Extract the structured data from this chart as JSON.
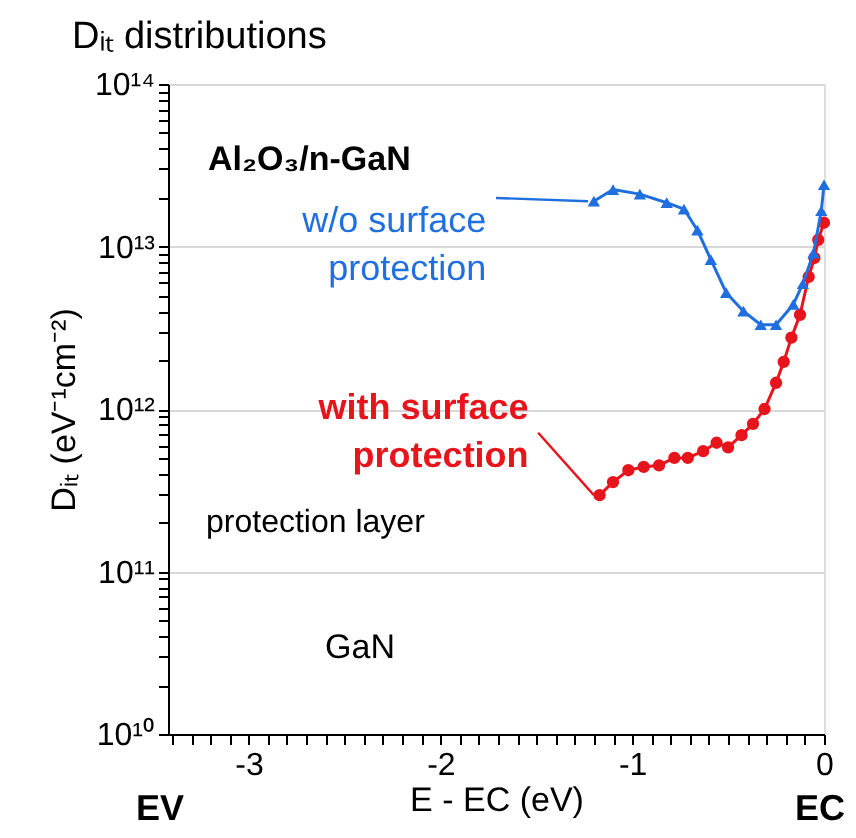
{
  "chart_data": {
    "type": "line",
    "title": "Dᵢₜ distributions",
    "xlabel": "E - EC (eV)",
    "ylabel": "Dᵢₜ (eV⁻¹cm⁻²)",
    "log": "y",
    "grid": "y",
    "xlim": [
      -3.42,
      0
    ],
    "xticks": [
      {
        "value": -3.4,
        "label": null
      },
      {
        "value": -3.3,
        "label": null
      },
      {
        "value": -3.2,
        "label": null
      },
      {
        "value": -3.1,
        "label": null
      },
      -3,
      {
        "value": -2.9,
        "label": null
      },
      {
        "value": -2.8,
        "label": null
      },
      {
        "value": -2.7,
        "label": null
      },
      {
        "value": -2.6,
        "label": null
      },
      {
        "value": -2.5,
        "label": null
      },
      {
        "value": -2.4,
        "label": null
      },
      {
        "value": -2.3,
        "label": null
      },
      {
        "value": -2.2,
        "label": null
      },
      {
        "value": -2.1,
        "label": null
      },
      -2,
      {
        "value": -1.9,
        "label": null
      },
      {
        "value": -1.8,
        "label": null
      },
      {
        "value": -1.7,
        "label": null
      },
      {
        "value": -1.6,
        "label": null
      },
      {
        "value": -1.5,
        "label": null
      },
      {
        "value": -1.4,
        "label": null
      },
      {
        "value": -1.3,
        "label": null
      },
      {
        "value": -1.2,
        "label": null
      },
      {
        "value": -1.1,
        "label": null
      },
      -1,
      {
        "value": -0.9,
        "label": null
      },
      {
        "value": -0.8,
        "label": null
      },
      {
        "value": -0.7,
        "label": null
      },
      {
        "value": -0.6,
        "label": null
      },
      {
        "value": -0.5,
        "label": null
      },
      {
        "value": -0.4,
        "label": null
      },
      {
        "value": -0.3,
        "label": null
      },
      {
        "value": -0.2,
        "label": null
      },
      {
        "value": -0.1,
        "label": null
      },
      0
    ],
    "ylim": [
      10000000000.0,
      100000000000000.0
    ],
    "yticks": [
      {
        "value": 10000000000.0,
        "label": "10¹⁰"
      },
      {
        "value": 20000000000.0,
        "label": null
      },
      {
        "value": 30000000000.0,
        "label": null
      },
      {
        "value": 40000000000.0,
        "label": null
      },
      {
        "value": 50000000000.0,
        "label": null
      },
      {
        "value": 60000000000.0,
        "label": null
      },
      {
        "value": 70000000000.0,
        "label": null
      },
      {
        "value": 80000000000.0,
        "label": null
      },
      {
        "value": 90000000000.0,
        "label": null
      },
      {
        "value": 100000000000.0,
        "label": "10¹¹"
      },
      {
        "value": 200000000000.0,
        "label": null
      },
      {
        "value": 300000000000.0,
        "label": null
      },
      {
        "value": 400000000000.0,
        "label": null
      },
      {
        "value": 500000000000.0,
        "label": null
      },
      {
        "value": 600000000000.0,
        "label": null
      },
      {
        "value": 700000000000.0,
        "label": null
      },
      {
        "value": 800000000000.0,
        "label": null
      },
      {
        "value": 900000000000.0,
        "label": null
      },
      {
        "value": 1000000000000.0,
        "label": "10¹²"
      },
      {
        "value": 2000000000000.0,
        "label": null
      },
      {
        "value": 3000000000000.0,
        "label": null
      },
      {
        "value": 4000000000000.0,
        "label": null
      },
      {
        "value": 5000000000000.0,
        "label": null
      },
      {
        "value": 6000000000000.0,
        "label": null
      },
      {
        "value": 7000000000000.0,
        "label": null
      },
      {
        "value": 8000000000000.0,
        "label": null
      },
      {
        "value": 9000000000000.0,
        "label": null
      },
      {
        "value": 10000000000000.0,
        "label": "10¹³"
      },
      {
        "value": 20000000000000.0,
        "label": null
      },
      {
        "value": 30000000000000.0,
        "label": null
      },
      {
        "value": 40000000000000.0,
        "label": null
      },
      {
        "value": 50000000000000.0,
        "label": null
      },
      {
        "value": 60000000000000.0,
        "label": null
      },
      {
        "value": 70000000000000.0,
        "label": null
      },
      {
        "value": 80000000000000.0,
        "label": null
      },
      {
        "value": 90000000000000.0,
        "label": null
      },
      {
        "value": 100000000000000.0,
        "label": "10¹⁴"
      }
    ],
    "series": [
      {
        "name": "w/o surface protection",
        "color": "#1f6fe0",
        "marker": "triangle",
        "x": [
          -1.2,
          -1.1,
          -0.96,
          -0.82,
          -0.73,
          -0.66,
          -0.59,
          -0.51,
          -0.42,
          -0.33,
          -0.25,
          -0.16,
          -0.11,
          -0.055,
          -0.014,
          0
        ],
        "values": [
          19000000000000.0,
          22400000000000.0,
          21000000000000.0,
          18600000000000.0,
          17000000000000.0,
          12600000000000.0,
          8300000000000.0,
          5200000000000.0,
          4000000000000.0,
          3300000000000.0,
          3300000000000.0,
          4400000000000.0,
          5900000000000.0,
          9100000000000.0,
          16600000000000.0,
          24000000000000.0
        ]
      },
      {
        "name": "with surface protection",
        "color": "#e8141c",
        "marker": "circle",
        "x": [
          -1.17,
          -1.1,
          -1.02,
          -0.94,
          -0.86,
          -0.78,
          -0.71,
          -0.63,
          -0.56,
          -0.5,
          -0.43,
          -0.37,
          -0.31,
          -0.25,
          -0.21,
          -0.17,
          -0.125,
          -0.08,
          -0.05,
          -0.03,
          0
        ],
        "values": [
          295000000000.0,
          355000000000.0,
          420000000000.0,
          440000000000.0,
          450000000000.0,
          500000000000.0,
          500000000000.0,
          550000000000.0,
          620000000000.0,
          580000000000.0,
          690000000000.0,
          810000000000.0,
          1000000000000.0,
          1450000000000.0,
          1950000000000.0,
          2750000000000.0,
          3800000000000.0,
          6500000000000.0,
          8500000000000.0,
          11000000000000.0,
          14000000000000.0
        ]
      }
    ],
    "annotations": [
      "Al₂O₃/n-GaN",
      "protection layer",
      "GaN",
      "EV",
      "EC"
    ]
  }
}
